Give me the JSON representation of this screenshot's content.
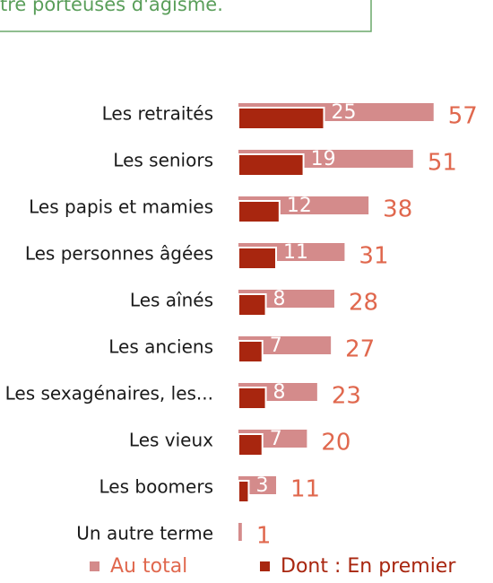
{
  "chart_data": {
    "type": "bar",
    "orientation": "horizontal",
    "annotation": "tre porteuses d'âgisme.",
    "categories": [
      "Les retraités",
      "Les seniors",
      "Les papis et mamies",
      "Les personnes âgées",
      "Les aînés",
      "Les anciens",
      "Les sexagénaires, les...",
      "Les vieux",
      "Les boomers",
      "Un autre terme"
    ],
    "series": [
      {
        "name": "Au total",
        "color": "#d48b8b",
        "label_color": "#e0684e",
        "values": [
          57,
          51,
          38,
          31,
          28,
          27,
          23,
          20,
          11,
          1
        ]
      },
      {
        "name": "Dont : En premier",
        "color": "#a8260f",
        "label_color": "#ffffff",
        "values": [
          25,
          19,
          12,
          11,
          8,
          7,
          8,
          7,
          3,
          null
        ]
      }
    ]
  }
}
